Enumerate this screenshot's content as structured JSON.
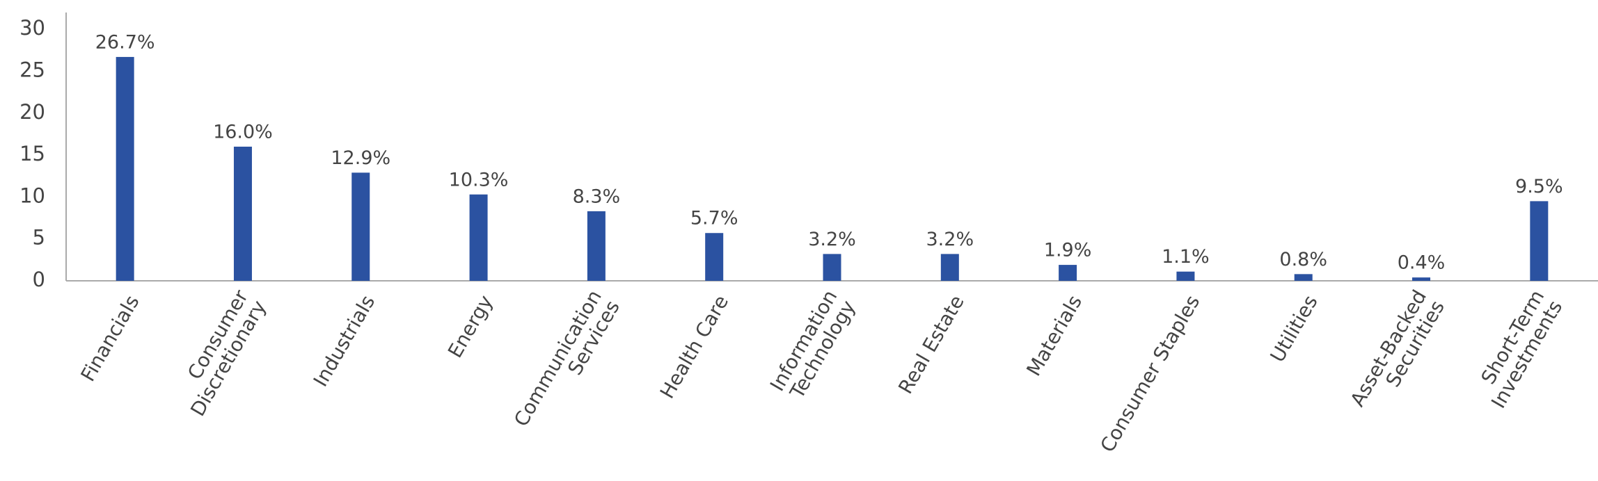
{
  "chart_data": {
    "type": "bar",
    "categories": [
      [
        "Financials"
      ],
      [
        "Consumer",
        "Discretionary"
      ],
      [
        "Industrials"
      ],
      [
        "Energy"
      ],
      [
        "Communication",
        "Services"
      ],
      [
        "Health Care"
      ],
      [
        "Information",
        "Technology"
      ],
      [
        "Real Estate"
      ],
      [
        "Materials"
      ],
      [
        "Consumer Staples"
      ],
      [
        "Utilities"
      ],
      [
        "Asset-Backed",
        "Securities"
      ],
      [
        "Short-Term",
        "Investments"
      ]
    ],
    "values": [
      26.7,
      16.0,
      12.9,
      10.3,
      8.3,
      5.7,
      3.2,
      3.2,
      1.9,
      1.1,
      0.8,
      0.4,
      9.5
    ],
    "value_labels": [
      "26.7%",
      "16.0%",
      "12.9%",
      "10.3%",
      "8.3%",
      "5.7%",
      "3.2%",
      "3.2%",
      "1.9%",
      "1.1%",
      "0.8%",
      "0.4%",
      "9.5%"
    ],
    "color": "#2b52a1",
    "ylim": [
      0,
      32
    ],
    "yticks": [
      0,
      5,
      10,
      15,
      20,
      25,
      30
    ],
    "grid": false
  }
}
